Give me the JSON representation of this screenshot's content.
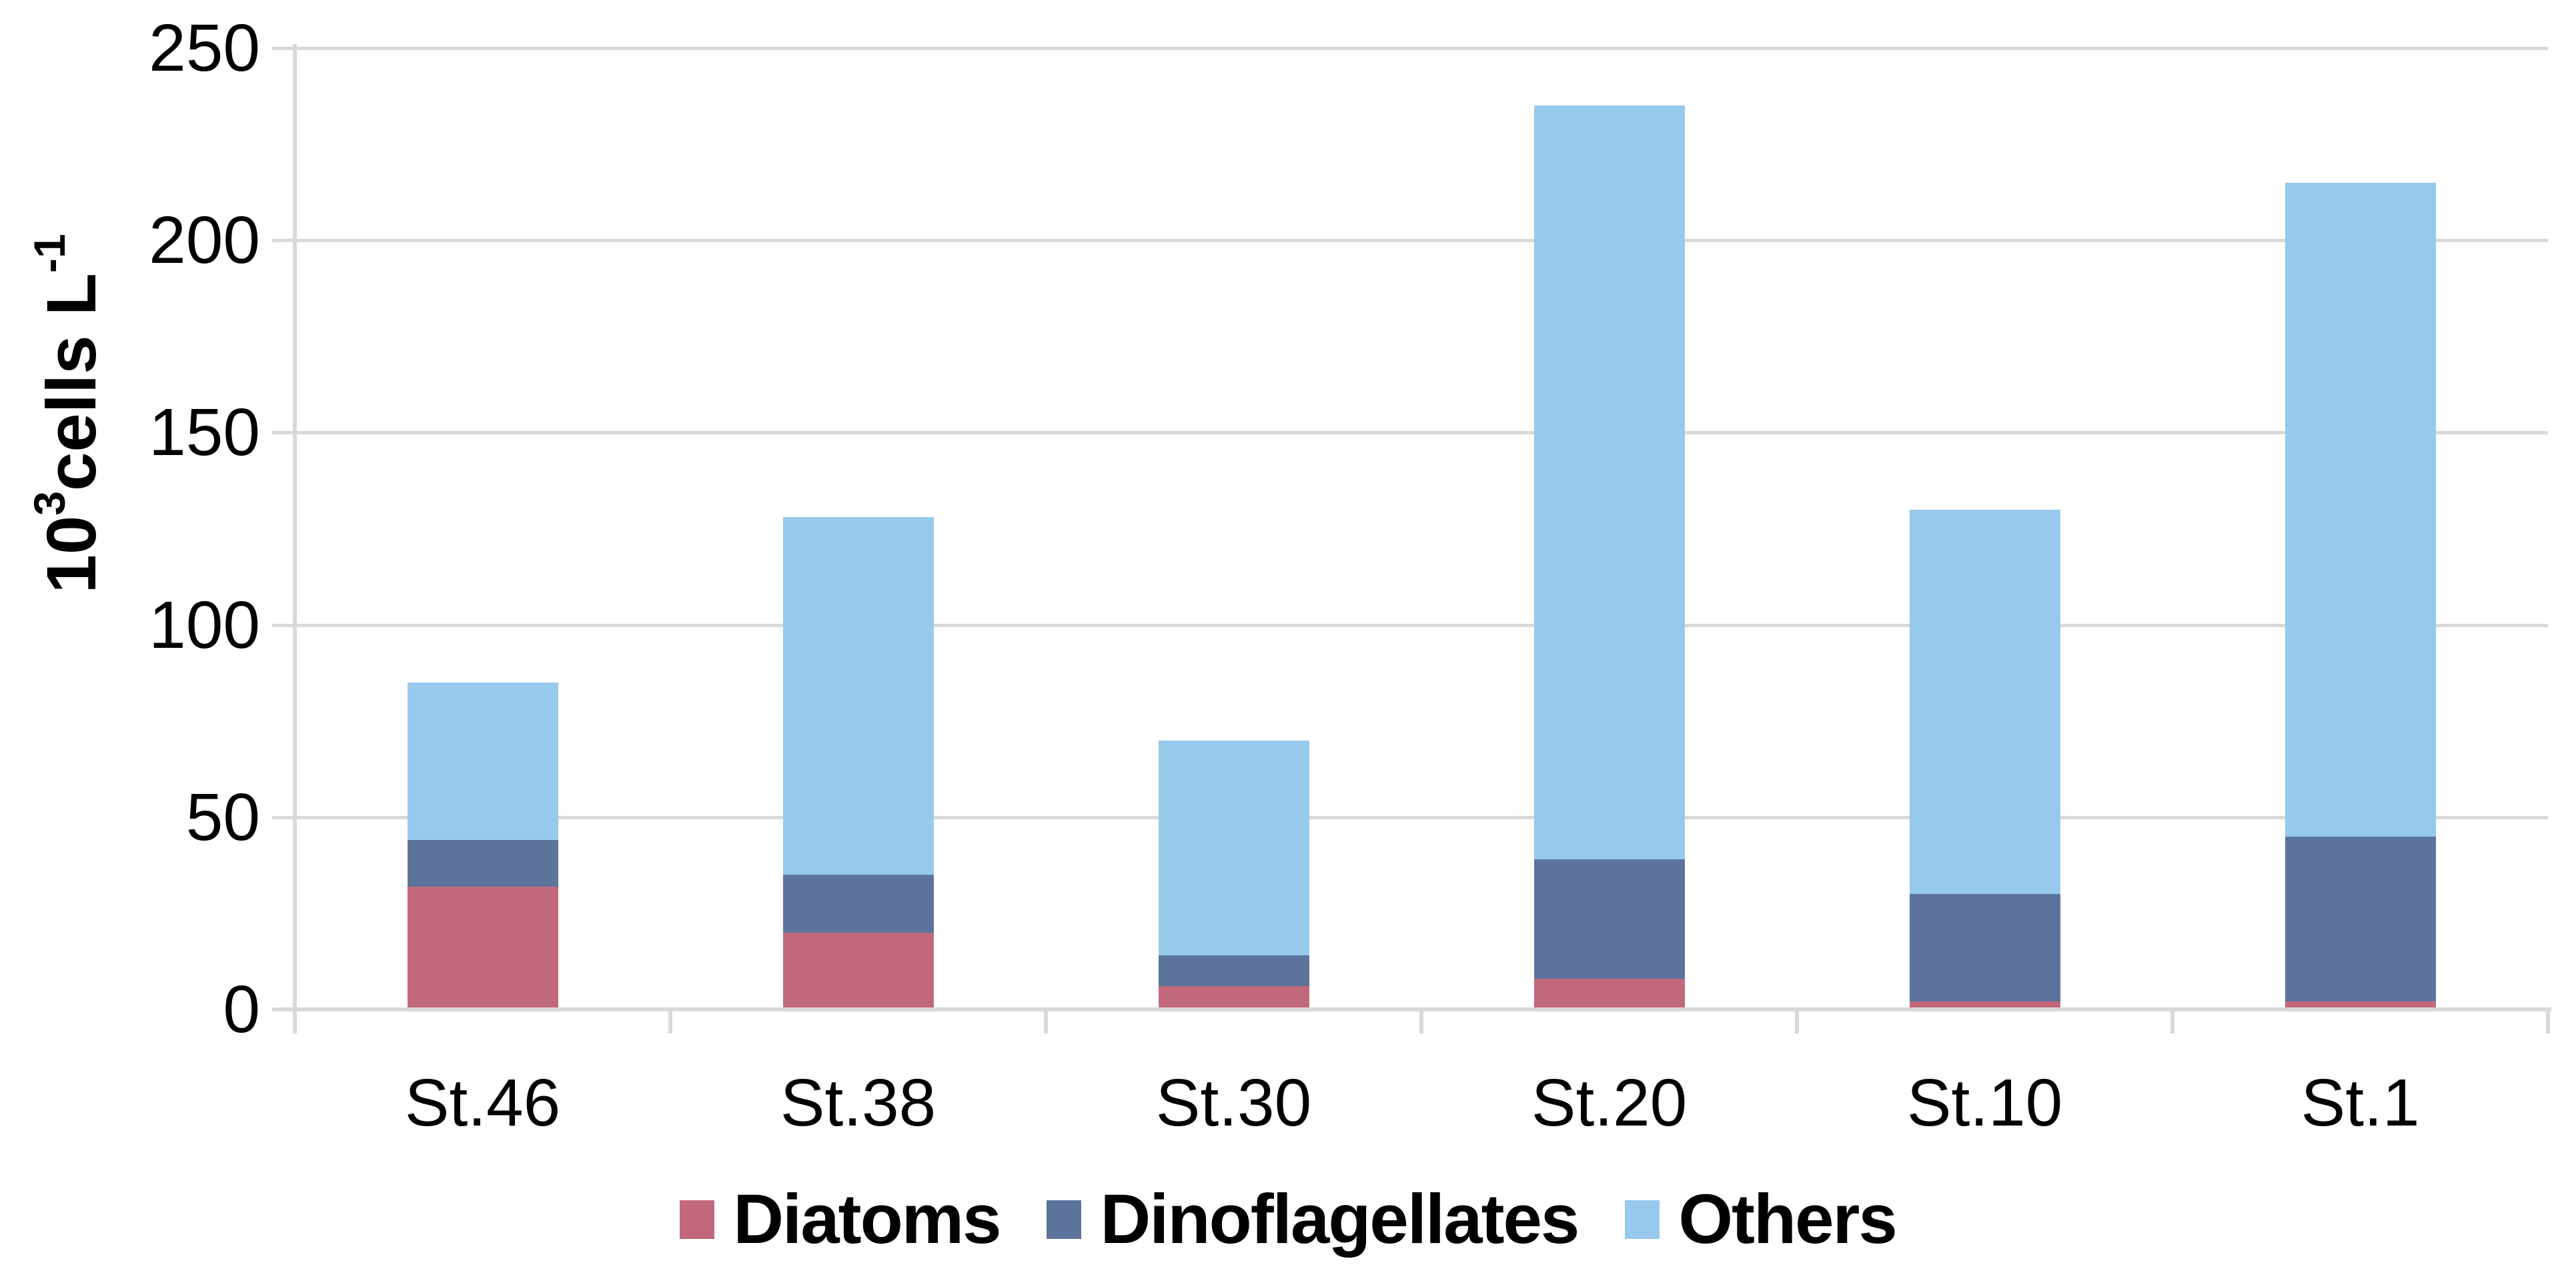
{
  "chart_data": {
    "type": "bar",
    "stacked": true,
    "title": "",
    "categories": [
      "St.46",
      "St.38",
      "St.30",
      "St.20",
      "St.10",
      "St.1"
    ],
    "series": [
      {
        "name": "Diatoms",
        "color": "#C2687D",
        "values": [
          32,
          20,
          6,
          8,
          2,
          2
        ]
      },
      {
        "name": "Dinoflagellates",
        "color": "#5C749C",
        "values": [
          12,
          15,
          8,
          31,
          28,
          43
        ]
      },
      {
        "name": "Others",
        "color": "#97C9ED",
        "values": [
          41,
          93,
          56,
          196,
          100,
          170
        ]
      }
    ],
    "totals": [
      85,
      128,
      70,
      235,
      130,
      215
    ],
    "ylabel": "10³ cells L⁻¹",
    "xlabel": "",
    "ylim": [
      0,
      250
    ],
    "yticks": [
      0,
      50,
      100,
      150,
      200,
      250
    ],
    "grid": true,
    "legend_position": "bottom"
  },
  "y_axis_title": {
    "base1": "10",
    "sup1": "3",
    "base2": " cells L",
    "sup2": "-1"
  },
  "colors": {
    "gridline": "#D9D9D9",
    "axis": "#D9D9D9",
    "text": "#000000",
    "background": "#FFFFFF"
  }
}
